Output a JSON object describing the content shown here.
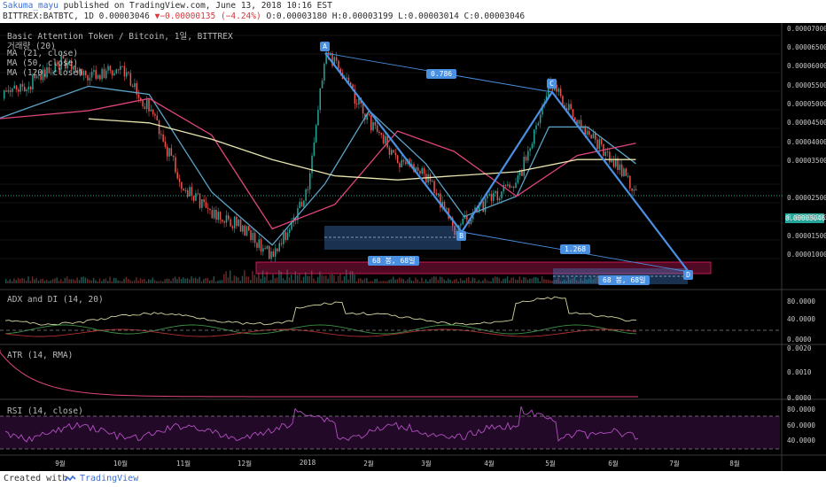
{
  "header": {
    "author": "Sakuma_mayu",
    "published_text": "published on TradingView.com, June 13, 2018 10:16 EST",
    "symbol": "BITTREX:BATBTC, 1D 0.00003046",
    "change": "▼−0.00000135 (−4.24%)",
    "ohlc": "O:0.00003180 H:0.00003199 L:0.00003014 C:0.00003046"
  },
  "overlay": {
    "title": "Basic Attention Token / Bitcoin, 1일, BITTREX",
    "volume": "거래량 (20)",
    "ma1": "MA (21, close)",
    "ma2": "MA (50, close)",
    "ma3": "MA (120, close)"
  },
  "panels": {
    "adx": "ADX and DI (14, 20)",
    "atr": "ATR (14, RMA)",
    "rsi": "RSI (14, close)"
  },
  "pattern": {
    "points": [
      "A",
      "B",
      "C",
      "D"
    ],
    "ratio_ac": "0.786",
    "ratio_bd": "1.268",
    "range1": "68 봉, 68일",
    "range2": "68 봉, 68일"
  },
  "footer": {
    "created": "Created with",
    "brand": "TradingView"
  },
  "colors": {
    "background": "#000000",
    "up": "#26a69a",
    "down": "#ef5350",
    "ma21": "#5ba3c7",
    "ma50": "#e0457b",
    "ma120": "#e8e6b0",
    "pattern": "#4a90e2",
    "rsi": "#b54fc4"
  },
  "chart_data": [
    {
      "type": "line",
      "title": "Basic Attention Token / Bitcoin, 1일, BITTREX",
      "xlabel": "",
      "ylabel": "",
      "x_ticks": [
        "9월",
        "10월",
        "11월",
        "12월",
        "2018",
        "2월",
        "3월",
        "4월",
        "5월",
        "6월",
        "7월",
        "8월"
      ],
      "y_ticks": [
        "0.00007000",
        "0.00006500",
        "0.00006000",
        "0.00005500",
        "0.00005000",
        "0.00004500",
        "0.00004000",
        "0.00003500",
        "0.00003046",
        "0.00002500",
        "0.00002000",
        "0.00001500",
        "0.00001000"
      ],
      "ylim": [
        8.5e-06,
        7.45e-05
      ],
      "last_price": "0.00003046",
      "series": [
        {
          "name": "close",
          "x": [
            "2017-08-01",
            "2017-08-15",
            "2017-09-01",
            "2017-09-15",
            "2017-10-01",
            "2017-10-15",
            "2017-11-01",
            "2017-11-15",
            "2017-12-01",
            "2017-12-15",
            "2018-01-01",
            "2018-01-10",
            "2018-01-20",
            "2018-02-01",
            "2018-02-15",
            "2018-03-01",
            "2018-03-15",
            "2018-04-01",
            "2018-04-15",
            "2018-05-01",
            "2018-05-15",
            "2018-06-01",
            "2018-06-13"
          ],
          "values": [
            5.3e-05,
            5.6e-05,
            6.2e-05,
            5.8e-05,
            6.1e-05,
            5e-05,
            3.1e-05,
            2.5e-05,
            2.1e-05,
            1.4e-05,
            3e-05,
            6.5e-05,
            5.7e-05,
            4.7e-05,
            3.8e-05,
            3.4e-05,
            2.1e-05,
            2.8e-05,
            3.2e-05,
            5.7e-05,
            4.7e-05,
            3.8e-05,
            3.046e-05
          ]
        },
        {
          "name": "MA (21, close)",
          "x": [
            "2017-08-01",
            "2017-09-15",
            "2017-10-15",
            "2017-11-15",
            "2017-12-15",
            "2018-01-10",
            "2018-02-01",
            "2018-03-01",
            "2018-03-20",
            "2018-04-15",
            "2018-05-01",
            "2018-05-20",
            "2018-06-13"
          ],
          "values": [
            4.8e-05,
            5.6e-05,
            5.4e-05,
            3e-05,
            1.7e-05,
            3.2e-05,
            5e-05,
            3.7e-05,
            2.4e-05,
            2.9e-05,
            4.6e-05,
            4.6e-05,
            3.7e-05
          ]
        },
        {
          "name": "MA (50, close)",
          "x": [
            "2017-08-01",
            "2017-09-15",
            "2017-10-15",
            "2017-11-15",
            "2017-12-15",
            "2018-01-15",
            "2018-02-15",
            "2018-03-15",
            "2018-04-15",
            "2018-05-15",
            "2018-06-13"
          ],
          "values": [
            4.8e-05,
            5e-05,
            5.3e-05,
            4.4e-05,
            2.1e-05,
            2.7e-05,
            4.5e-05,
            4e-05,
            2.9e-05,
            3.9e-05,
            4.2e-05
          ]
        },
        {
          "name": "MA (120, close)",
          "x": [
            "2017-09-15",
            "2017-10-15",
            "2017-11-15",
            "2017-12-15",
            "2018-01-15",
            "2018-02-15",
            "2018-03-15",
            "2018-04-15",
            "2018-05-15",
            "2018-06-13"
          ],
          "values": [
            4.8e-05,
            4.7e-05,
            4.3e-05,
            3.8e-05,
            3.4e-05,
            3.3e-05,
            3.4e-05,
            3.5e-05,
            3.8e-05,
            3.8e-05
          ]
        }
      ]
    },
    {
      "type": "line",
      "title": "ADX and DI (14, 20)",
      "y_ticks": [
        "80.0000",
        "40.0000",
        "0.0000"
      ],
      "ylim": [
        0,
        100
      ]
    },
    {
      "type": "line",
      "title": "ATR (14, RMA)",
      "y_ticks": [
        "0.0020",
        "0.0010",
        "0.0000"
      ],
      "ylim": [
        0,
        0.0022
      ]
    },
    {
      "type": "line",
      "title": "RSI (14, close)",
      "y_ticks": [
        "80.0000",
        "60.0000",
        "40.0000"
      ],
      "ylim": [
        20,
        90
      ]
    }
  ]
}
